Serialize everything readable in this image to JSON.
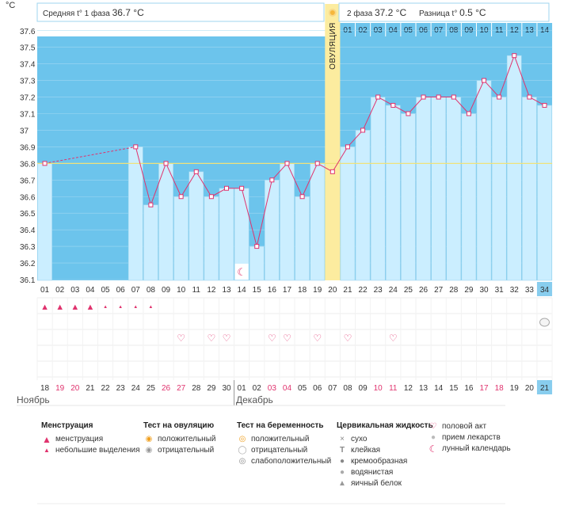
{
  "chart_data": {
    "type": "line",
    "y_unit": "°C",
    "ylim": [
      36.1,
      37.65
    ],
    "yticks": [
      "37.6",
      "37.5",
      "37.4",
      "37.3",
      "37.2",
      "37.1",
      "37",
      "36.9",
      "36.8",
      "36.7",
      "36.6",
      "36.5",
      "36.4",
      "36.3",
      "36.2",
      "36.1"
    ],
    "phase1_label": "Средняя t° 1 фаза",
    "phase1_value": "36.7 °C",
    "phase2_label": "2 фаза",
    "phase2_value": "37.2 °C",
    "diff_label": "Разница t°",
    "diff_value": "0.5 °C",
    "ovulation_label": "ОВУЛЯЦИЯ",
    "coverline": 36.8,
    "cycle_days": [
      "01",
      "02",
      "03",
      "04",
      "05",
      "06",
      "07",
      "08",
      "09",
      "10",
      "11",
      "12",
      "13",
      "14",
      "15",
      "16",
      "17",
      "18",
      "19",
      "20",
      "21",
      "22",
      "23",
      "24",
      "25",
      "26",
      "27",
      "28",
      "29",
      "30",
      "31",
      "32",
      "33",
      "34"
    ],
    "dpo": [
      "01",
      "02",
      "03",
      "04",
      "05",
      "06",
      "07",
      "08",
      "09",
      "10",
      "11",
      "12",
      "13",
      "14"
    ],
    "temperatures": [
      36.8,
      null,
      null,
      null,
      null,
      null,
      36.9,
      36.55,
      36.8,
      36.6,
      36.75,
      36.6,
      36.65,
      36.65,
      36.3,
      36.7,
      36.8,
      36.6,
      36.8,
      36.75,
      36.9,
      37.0,
      37.2,
      37.15,
      37.1,
      37.2,
      37.2,
      37.2,
      37.1,
      37.3,
      37.2,
      37.45,
      37.2,
      37.15
    ],
    "dates": [
      "18",
      "19",
      "20",
      "21",
      "22",
      "23",
      "24",
      "25",
      "26",
      "27",
      "28",
      "29",
      "30",
      "01",
      "02",
      "03",
      "04",
      "05",
      "06",
      "07",
      "08",
      "09",
      "10",
      "11",
      "12",
      "13",
      "14",
      "15",
      "16",
      "17",
      "18",
      "19",
      "20",
      "21"
    ],
    "red_dates": [
      1,
      2,
      8,
      9,
      15,
      16,
      22,
      23,
      29,
      30
    ],
    "month_1": "Ноябрь",
    "month_2": "Декабрь",
    "menstruation_heavy_days": [
      0,
      1,
      2,
      3
    ],
    "menstruation_light_days": [
      4,
      5,
      6,
      7
    ],
    "intercourse_days": [
      9,
      11,
      12,
      15,
      16,
      18,
      20,
      23
    ],
    "moon_day": 13,
    "cervical_day": 33
  },
  "legend": {
    "menstruation": {
      "title": "Менструация",
      "items": [
        "менструация",
        "небольшие выделения"
      ]
    },
    "ovulation_test": {
      "title": "Тест на овуляцию",
      "items": [
        "положительный",
        "отрицательный"
      ]
    },
    "pregnancy_test": {
      "title": "Тест на беременность",
      "items": [
        "положительный",
        "отрицательный",
        "слабоположительный"
      ]
    },
    "cervical_fluid": {
      "title": "Цервикальная жидкость",
      "items": [
        "сухо",
        "клейкая",
        "кремообразная",
        "водянистая",
        "яичный белок"
      ]
    },
    "other": [
      "половой акт",
      "прием лекарств",
      "лунный календарь"
    ]
  },
  "colors": {
    "accent": "#6cc4ec",
    "bar": "#cbeeff",
    "bar_edge": "#9fd6ef",
    "line": "#e0336e",
    "ovulation": "#fcec9f",
    "coverline": "#f0e27a",
    "highlight": "#88cdee",
    "red": "#e0336e"
  }
}
